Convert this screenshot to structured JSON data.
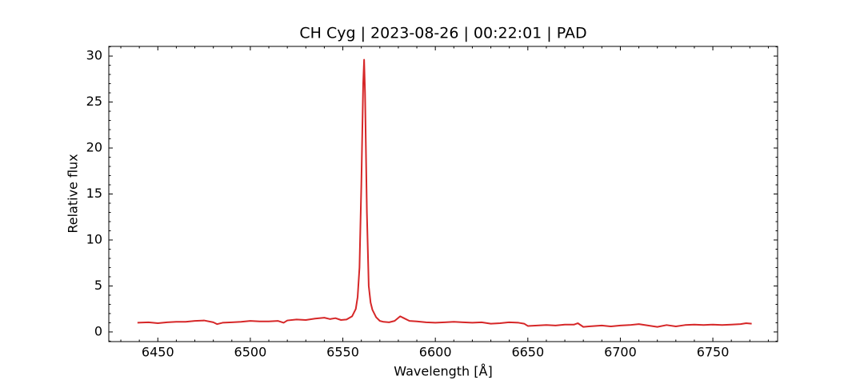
{
  "chart_data": {
    "type": "line",
    "title": "CH Cyg | 2023-08-26 | 00:22:01 | PAD",
    "x_label": "Wavelength [Å]",
    "y_label": "Relative flux",
    "xlim": [
      6423.5,
      6785
    ],
    "ylim": [
      -1.05,
      31.05
    ],
    "xticks": [
      6450,
      6500,
      6550,
      6600,
      6650,
      6700,
      6750
    ],
    "yticks": [
      0,
      5,
      10,
      15,
      20,
      25,
      30
    ],
    "grid": false,
    "x": [
      6439,
      6445,
      6450,
      6455,
      6460,
      6465,
      6470,
      6475,
      6480,
      6482,
      6485,
      6490,
      6495,
      6500,
      6505,
      6510,
      6515,
      6518,
      6520,
      6525,
      6530,
      6535,
      6540,
      6543,
      6546,
      6549,
      6552,
      6555,
      6557,
      6558,
      6559,
      6560,
      6561,
      6561.5,
      6562,
      6563,
      6564,
      6565,
      6566,
      6568,
      6570,
      6572,
      6575,
      6578,
      6581,
      6583,
      6586,
      6590,
      6595,
      6600,
      6605,
      6610,
      6615,
      6620,
      6625,
      6630,
      6635,
      6640,
      6645,
      6648,
      6650,
      6655,
      6660,
      6665,
      6670,
      6675,
      6677,
      6680,
      6683,
      6690,
      6695,
      6700,
      6705,
      6710,
      6715,
      6720,
      6725,
      6730,
      6735,
      6740,
      6745,
      6750,
      6755,
      6760,
      6765,
      6768,
      6771
    ],
    "series": [
      {
        "color": "#d62728",
        "values": [
          1.0,
          1.05,
          0.95,
          1.05,
          1.1,
          1.1,
          1.2,
          1.25,
          1.05,
          0.85,
          1.0,
          1.05,
          1.1,
          1.2,
          1.15,
          1.15,
          1.2,
          1.0,
          1.25,
          1.35,
          1.3,
          1.45,
          1.55,
          1.4,
          1.5,
          1.3,
          1.35,
          1.7,
          2.5,
          3.8,
          7,
          16,
          27,
          29.6,
          26,
          13,
          5,
          3.2,
          2.4,
          1.6,
          1.2,
          1.1,
          1.05,
          1.2,
          1.7,
          1.5,
          1.2,
          1.15,
          1.05,
          1.0,
          1.05,
          1.1,
          1.05,
          1.0,
          1.05,
          0.9,
          0.95,
          1.05,
          1.0,
          0.9,
          0.65,
          0.7,
          0.75,
          0.7,
          0.8,
          0.8,
          0.95,
          0.55,
          0.6,
          0.7,
          0.6,
          0.7,
          0.75,
          0.85,
          0.7,
          0.55,
          0.75,
          0.6,
          0.75,
          0.8,
          0.75,
          0.8,
          0.75,
          0.8,
          0.85,
          0.95,
          0.9
        ]
      }
    ]
  }
}
